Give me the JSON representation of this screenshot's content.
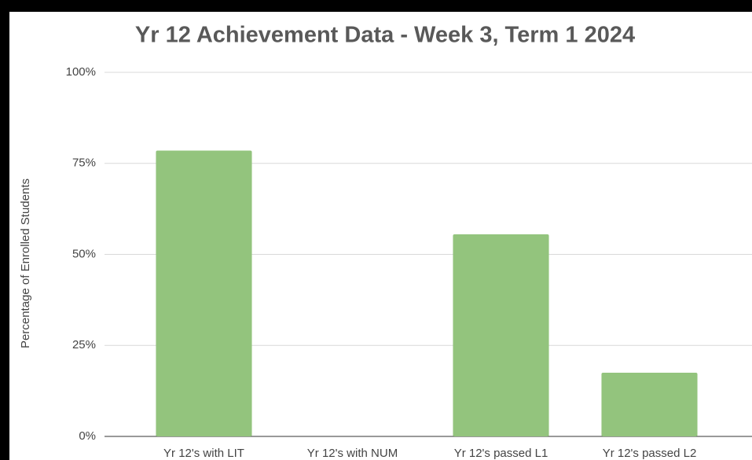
{
  "chart_data": {
    "type": "bar",
    "title": "Yr 12 Achievement Data - Week 3, Term 1 2024",
    "y_label": "Percentage of Enrolled Students",
    "categories": [
      "Yr 12's with LIT",
      "Yr 12's with NUM",
      "Yr 12's passed L1",
      "Yr 12's passed L2"
    ],
    "values": [
      78.5,
      0,
      55.5,
      17.5
    ],
    "color": "#93c47d",
    "ylim": [
      0,
      100
    ],
    "yticks": [
      {
        "value": 0,
        "label": "0%"
      },
      {
        "value": 25,
        "label": "25%"
      },
      {
        "value": 50,
        "label": "50%"
      },
      {
        "value": 75,
        "label": "75%"
      },
      {
        "value": 100,
        "label": "100%"
      }
    ],
    "grid": true
  }
}
